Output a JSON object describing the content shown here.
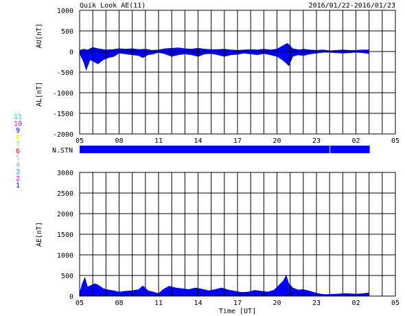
{
  "header": {
    "title": "Quik Look AE(11)",
    "date_range": "2016/01/22-2016/01/23"
  },
  "stations": {
    "label": "N.STN",
    "counts": [
      "11",
      "10",
      "9",
      "8",
      "7",
      "6",
      "5",
      "4",
      "3",
      "2",
      "1"
    ],
    "count_colors": [
      "#00e0e0",
      "#ff00ff",
      "#0000ff",
      "#ffff00",
      "#90ee60",
      "#ff0000",
      "#c0c0c0",
      "#a0a0a0",
      "#00c8c8",
      "#ff00ff",
      "#0000ff"
    ],
    "bar_color": "#0000ff",
    "segments": [
      {
        "start_hour": 5.0,
        "end_hour": 24.0
      },
      {
        "start_hour": 24.05,
        "end_hour": 27.05
      }
    ]
  },
  "colors": {
    "fill": "#0000ff",
    "grid": "#000000"
  },
  "chart_data": [
    {
      "type": "area",
      "panel": "AU/AL",
      "ylabel_upper": "AU[nT]",
      "ylabel_lower": "AL[nT]",
      "xlabel": "",
      "ylim": [
        -2000,
        1000
      ],
      "yticks": [
        1000,
        500,
        0,
        -500,
        -1000,
        -1500,
        -2000
      ],
      "xlim_hours": [
        5,
        29
      ],
      "xtick_labels": [
        "05",
        "08",
        "11",
        "14",
        "17",
        "20",
        "23",
        "02",
        "05"
      ],
      "grid": true,
      "series": [
        {
          "role": "AU",
          "x_hours": [
            5.0,
            5.3,
            5.6,
            6.0,
            6.4,
            7.0,
            7.5,
            8.0,
            8.5,
            9.0,
            9.5,
            10.0,
            10.5,
            11.0,
            11.5,
            12.0,
            12.5,
            13.0,
            13.5,
            14.0,
            14.5,
            15.0,
            15.5,
            16.0,
            16.5,
            17.0,
            17.5,
            18.0,
            18.5,
            19.0,
            19.5,
            20.0,
            20.5,
            20.8,
            21.2,
            21.7,
            22.0,
            22.5,
            23.0,
            23.5,
            24.0,
            24.5,
            25.0,
            25.5,
            26.0,
            26.5,
            27.0
          ],
          "values": [
            30,
            60,
            40,
            100,
            70,
            40,
            50,
            70,
            60,
            70,
            50,
            60,
            30,
            40,
            70,
            80,
            90,
            70,
            60,
            80,
            60,
            50,
            50,
            60,
            40,
            30,
            40,
            50,
            40,
            60,
            40,
            60,
            150,
            200,
            70,
            40,
            60,
            40,
            30,
            40,
            20,
            30,
            40,
            30,
            30,
            40,
            40
          ]
        },
        {
          "role": "AL",
          "x_hours": [
            5.0,
            5.3,
            5.5,
            5.8,
            6.1,
            6.4,
            6.8,
            7.2,
            7.6,
            8.0,
            8.5,
            9.0,
            9.5,
            9.8,
            10.2,
            10.6,
            11.0,
            11.5,
            12.0,
            12.5,
            13.0,
            13.5,
            14.0,
            14.5,
            15.0,
            15.5,
            16.0,
            16.5,
            17.0,
            17.5,
            18.0,
            18.5,
            19.0,
            19.5,
            20.0,
            20.4,
            20.7,
            20.9,
            21.2,
            21.6,
            22.0,
            22.5,
            23.0,
            23.5,
            24.0,
            24.5,
            25.0,
            25.5,
            26.0,
            26.5,
            27.0
          ],
          "values": [
            -50,
            -250,
            -450,
            -200,
            -250,
            -300,
            -200,
            -150,
            -120,
            -40,
            -60,
            -80,
            -100,
            -150,
            -80,
            -60,
            -20,
            -60,
            -120,
            -80,
            -60,
            -80,
            -120,
            -60,
            -50,
            -80,
            -120,
            -80,
            -70,
            -40,
            -60,
            -80,
            -50,
            -80,
            -120,
            -200,
            -280,
            -350,
            -120,
            -80,
            -100,
            -60,
            -40,
            -20,
            -20,
            -30,
            -40,
            -30,
            -20,
            -30,
            -50
          ]
        }
      ]
    },
    {
      "type": "area",
      "panel": "AE",
      "ylabel": "AE[nT]",
      "xlabel": "Time [UT]",
      "ylim": [
        0,
        3000
      ],
      "yticks": [
        3000,
        2500,
        2000,
        1500,
        1000,
        500,
        0
      ],
      "xlim_hours": [
        5,
        29
      ],
      "xtick_labels": [
        "05",
        "08",
        "11",
        "14",
        "17",
        "20",
        "23",
        "02",
        "05"
      ],
      "grid": true,
      "series": [
        {
          "role": "AE",
          "x_hours": [
            5.0,
            5.2,
            5.4,
            5.6,
            5.8,
            6.0,
            6.2,
            6.5,
            6.8,
            7.2,
            7.6,
            8.0,
            8.5,
            9.0,
            9.5,
            9.8,
            10.2,
            10.6,
            11.0,
            11.3,
            11.8,
            12.3,
            12.8,
            13.3,
            13.8,
            14.3,
            14.8,
            15.3,
            15.8,
            16.3,
            16.8,
            17.3,
            17.8,
            18.3,
            18.8,
            19.3,
            19.8,
            20.2,
            20.5,
            20.7,
            20.9,
            21.2,
            21.6,
            22.0,
            22.5,
            23.0,
            23.5,
            24.0,
            24.5,
            25.0,
            25.5,
            26.0,
            26.5,
            27.0
          ],
          "values": [
            80,
            300,
            450,
            220,
            250,
            280,
            300,
            250,
            180,
            150,
            130,
            100,
            120,
            130,
            160,
            250,
            130,
            100,
            60,
            150,
            240,
            200,
            180,
            160,
            200,
            170,
            130,
            160,
            200,
            150,
            120,
            90,
            100,
            140,
            120,
            100,
            150,
            280,
            380,
            500,
            300,
            200,
            150,
            160,
            120,
            70,
            40,
            40,
            50,
            60,
            60,
            50,
            60,
            80
          ]
        }
      ]
    }
  ]
}
